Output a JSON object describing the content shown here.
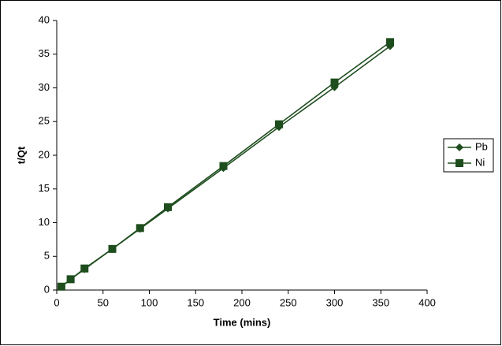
{
  "chart_data": {
    "type": "line",
    "x_label": "Time (mins)",
    "y_label": "t/Qt",
    "x": [
      5,
      15,
      30,
      60,
      90,
      120,
      180,
      240,
      300,
      360
    ],
    "series": [
      {
        "name": "Pb",
        "color": "#1e4d1e",
        "marker": "diamond",
        "values": [
          0.5,
          1.6,
          3.1,
          6.1,
          9.1,
          12.1,
          18.1,
          24.2,
          30.1,
          36.2
        ]
      },
      {
        "name": "Ni",
        "color": "#1e4d1e",
        "marker": "square",
        "values": [
          0.5,
          1.6,
          3.2,
          6.1,
          9.2,
          12.3,
          18.4,
          24.6,
          30.8,
          36.8
        ]
      }
    ],
    "xlim": [
      0,
      400
    ],
    "xticks": [
      0,
      50,
      100,
      150,
      200,
      250,
      300,
      350,
      400
    ],
    "ylim": [
      0,
      40
    ],
    "yticks": [
      0,
      5,
      10,
      15,
      20,
      25,
      30,
      35,
      40
    ],
    "grid": false,
    "legend": "right"
  }
}
